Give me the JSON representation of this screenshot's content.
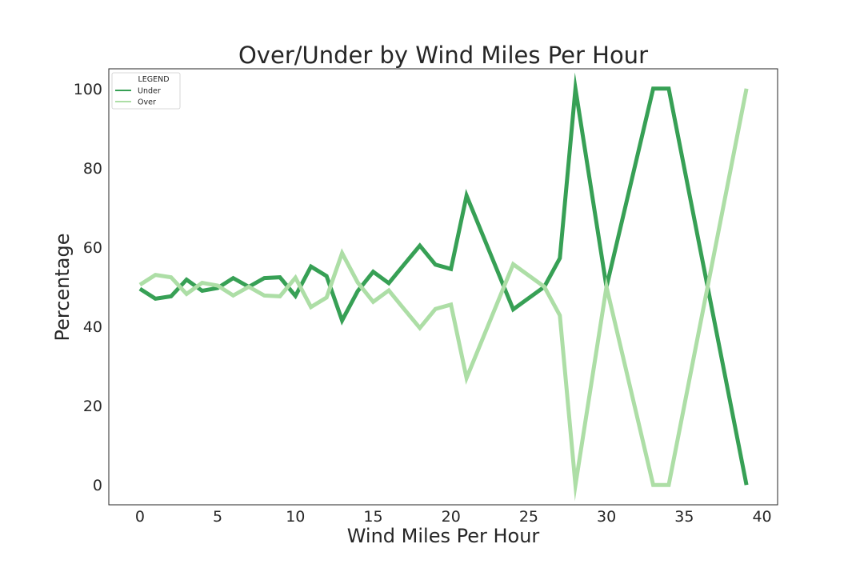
{
  "chart_data": {
    "type": "line",
    "title": "Over/Under by Wind Miles Per Hour",
    "xlabel": "Wind Miles Per Hour",
    "ylabel": "Percentage",
    "xlim": [
      -2,
      41
    ],
    "ylim": [
      -5,
      105
    ],
    "xticks": [
      0,
      5,
      10,
      15,
      20,
      25,
      30,
      35,
      40
    ],
    "yticks": [
      0,
      20,
      40,
      60,
      80,
      100
    ],
    "grid": false,
    "legend": {
      "title": "LEGEND",
      "placement": "upper-left"
    },
    "series": [
      {
        "name": "Under",
        "color": "#37a055",
        "points": [
          [
            0,
            49.5
          ],
          [
            1,
            47.0
          ],
          [
            2,
            47.6
          ],
          [
            3,
            51.8
          ],
          [
            4,
            49.0
          ],
          [
            5,
            49.7
          ],
          [
            6,
            52.2
          ],
          [
            7,
            50.0
          ],
          [
            8,
            52.2
          ],
          [
            9,
            52.4
          ],
          [
            10,
            47.7
          ],
          [
            11,
            55.1
          ],
          [
            12,
            52.7
          ],
          [
            13,
            41.5
          ],
          [
            14,
            48.9
          ],
          [
            15,
            53.8
          ],
          [
            16,
            50.9
          ],
          [
            17,
            55.7
          ],
          [
            18,
            60.4
          ],
          [
            19,
            55.6
          ],
          [
            20,
            54.5
          ],
          [
            21,
            73.0
          ],
          [
            24,
            44.3
          ],
          [
            26,
            50.0
          ],
          [
            27,
            57.2
          ],
          [
            28,
            100.0
          ],
          [
            30,
            50.0
          ],
          [
            33,
            100.0
          ],
          [
            34,
            100.0
          ],
          [
            39,
            0.0
          ]
        ]
      },
      {
        "name": "Over",
        "color": "#addea6",
        "points": [
          [
            0,
            50.5
          ],
          [
            1,
            53.0
          ],
          [
            2,
            52.4
          ],
          [
            3,
            48.2
          ],
          [
            4,
            51.0
          ],
          [
            5,
            50.3
          ],
          [
            6,
            47.8
          ],
          [
            7,
            50.0
          ],
          [
            8,
            47.8
          ],
          [
            9,
            47.6
          ],
          [
            10,
            52.3
          ],
          [
            11,
            44.9
          ],
          [
            12,
            47.3
          ],
          [
            13,
            58.5
          ],
          [
            14,
            51.1
          ],
          [
            15,
            46.2
          ],
          [
            16,
            49.1
          ],
          [
            17,
            44.3
          ],
          [
            18,
            39.6
          ],
          [
            19,
            44.4
          ],
          [
            20,
            45.5
          ],
          [
            21,
            27.0
          ],
          [
            24,
            55.7
          ],
          [
            26,
            50.0
          ],
          [
            27,
            42.8
          ],
          [
            28,
            0.0
          ],
          [
            30,
            50.0
          ],
          [
            33,
            0.0
          ],
          [
            34,
            0.0
          ],
          [
            39,
            100.0
          ]
        ]
      }
    ]
  }
}
